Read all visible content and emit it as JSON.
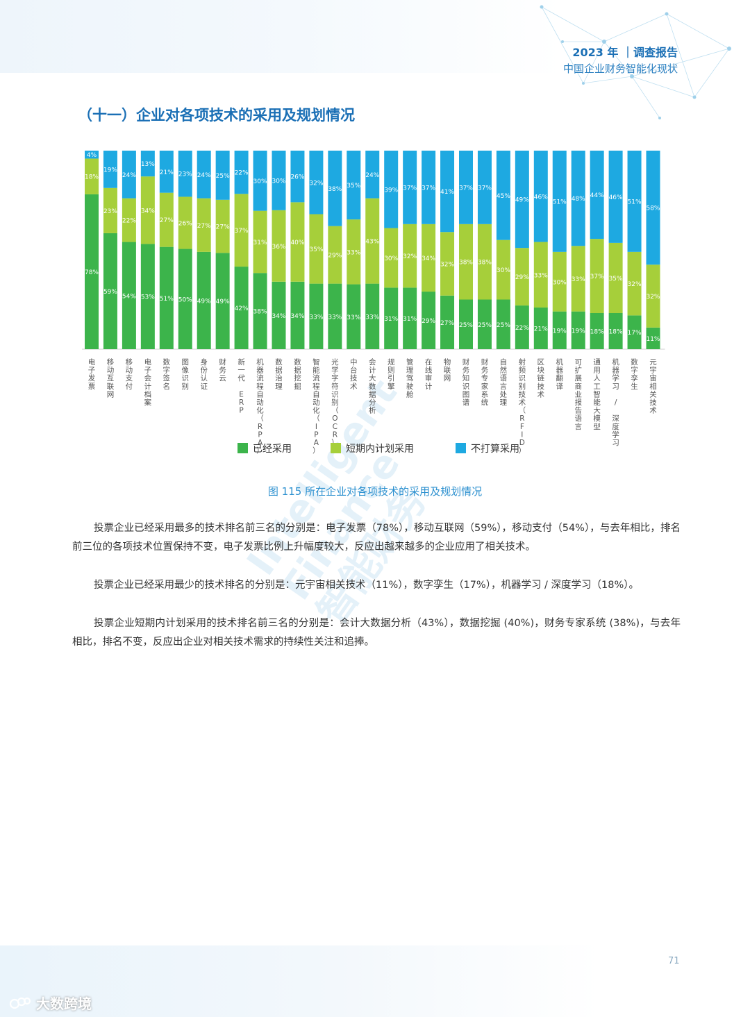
{
  "header": {
    "title": "2023 年 ｜调查报告",
    "subtitle": "中国企业财务智能化现状"
  },
  "section_title": "（十一）企业对各项技术的采用及规划情况",
  "chart_data": {
    "type": "bar",
    "stacked": true,
    "percent_stacked": true,
    "categories": [
      "电子发票",
      "移动互联网",
      "移动支付",
      "电子会计档案",
      "数字签名",
      "图像识别",
      "身份认证",
      "财务云",
      "新一代 ERP",
      "机器流程自动化（RPA）",
      "数据治理",
      "数据挖掘",
      "智能流程自动化（IPA）",
      "光学字符识别（OCR）",
      "中台技术",
      "会计大数据分析",
      "规则引擎",
      "管理驾驶舱",
      "在线审计",
      "物联网",
      "财务知识图谱",
      "财务专家系统",
      "自然语言处理",
      "射频识别技术（RFID）",
      "区块链技术",
      "机器翻译",
      "可扩展商业报告语言",
      "通用人工智能大模型",
      "机器学习 / 深度学习",
      "数字孪生",
      "元宇宙相关技术"
    ],
    "series": [
      {
        "name": "已经采用",
        "color": "#3cb44b",
        "values": [
          78,
          59,
          54,
          53,
          51,
          50,
          49,
          49,
          42,
          38,
          34,
          34,
          33,
          33,
          33,
          33,
          31,
          31,
          29,
          27,
          25,
          25,
          25,
          22,
          21,
          19,
          19,
          18,
          18,
          17,
          11
        ]
      },
      {
        "name": "短期内计划采用",
        "color": "#a6cf3a",
        "values": [
          18,
          23,
          22,
          34,
          27,
          26,
          27,
          27,
          37,
          31,
          36,
          40,
          35,
          29,
          33,
          43,
          30,
          32,
          34,
          32,
          38,
          38,
          30,
          29,
          33,
          30,
          33,
          37,
          35,
          32,
          32
        ]
      },
      {
        "name": "不打算采用",
        "color": "#1ea9e1",
        "values": [
          4,
          19,
          24,
          13,
          21,
          23,
          24,
          25,
          22,
          30,
          30,
          26,
          32,
          38,
          35,
          24,
          39,
          37,
          37,
          41,
          37,
          37,
          45,
          49,
          46,
          51,
          48,
          44,
          46,
          51,
          58
        ]
      }
    ],
    "ylim": [
      0,
      100
    ],
    "grid": false,
    "legend": "bottom",
    "value_label_suffix": "%"
  },
  "caption": "图 115 所在企业对各项技术的采用及规划情况",
  "paragraphs": [
    "投票企业已经采用最多的技术排名前三名的分别是：电子发票（78%），移动互联网（59%），移动支付（54%），与去年相比，排名前三位的各项技术位置保持不变，电子发票比例上升幅度较大，反应出越来越多的企业应用了相关技术。",
    "投票企业已经采用最少的技术排名的分别是：元宇宙相关技术（11%），数字孪生（17%），机器学习 / 深度学习（18%）。",
    "投票企业短期内计划采用的技术排名前三名的分别是：会计大数据分析（43%），数据挖掘 (40%)，财务专家系统 (38%)，与去年相比，排名不变，反应出企业对相关技术需求的持续性关注和追捧。"
  ],
  "page_number": "71",
  "brand": {
    "name": "大数跨境"
  },
  "watermark": {
    "lines": [
      "Intelligent",
      "Finance",
      "智能财务"
    ]
  }
}
